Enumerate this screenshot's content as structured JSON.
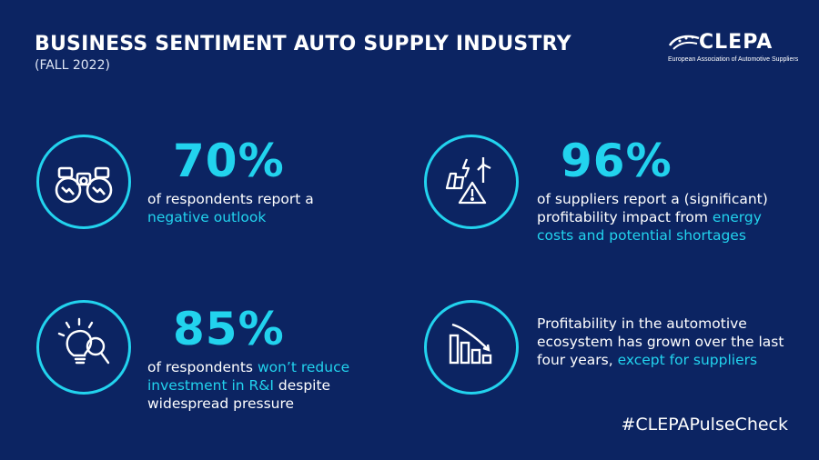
{
  "header": {
    "title": "BUSINESS SENTIMENT AUTO SUPPLY INDUSTRY",
    "subtitle": "(FALL 2022)"
  },
  "logo": {
    "name": "CLEPA",
    "tagline": "European Association of Automotive Suppliers"
  },
  "stats": [
    {
      "icon": "binoculars-icon",
      "value": "70%",
      "text_before": "of respondents report a ",
      "highlight": "negative outlook",
      "text_after": ""
    },
    {
      "icon": "energy-warning-icon",
      "value": "96%",
      "text_before": "of suppliers report a (significant) profitability impact from ",
      "highlight": "energy costs and potential shortages",
      "text_after": ""
    },
    {
      "icon": "lightbulb-search-icon",
      "value": "85%",
      "text_before": "of respondents ",
      "highlight": "won’t reduce investment in R&I",
      "text_after": " despite widespread pressure"
    },
    {
      "icon": "declining-bar-chart-icon",
      "value": "",
      "text_before": "Profitability in the automotive ecosystem has grown over the last four years, ",
      "highlight": "except for suppliers",
      "text_after": ""
    }
  ],
  "footer": {
    "hashtag": "#CLEPAPulseCheck"
  },
  "colors": {
    "background": "#0c2462",
    "accent": "#22d3ee",
    "text": "#ffffff"
  }
}
